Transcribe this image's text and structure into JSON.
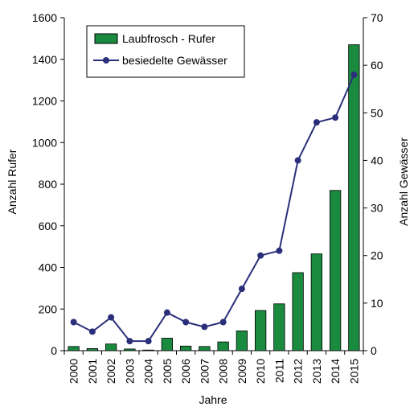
{
  "chart_data": {
    "type": "bar",
    "title": "",
    "xlabel": "Jahre",
    "ylabel": "Anzahl Rufer",
    "y2label": "Anzahl Gewässer",
    "categories": [
      "2000",
      "2001",
      "2002",
      "2003",
      "2004",
      "2005",
      "2006",
      "2007",
      "2008",
      "2009",
      "2010",
      "2011",
      "2012",
      "2013",
      "2014",
      "2015"
    ],
    "ylim": [
      0,
      1600
    ],
    "yticks": [
      0,
      200,
      400,
      600,
      800,
      1000,
      1200,
      1400,
      1600
    ],
    "y2lim": [
      0,
      70
    ],
    "y2ticks": [
      0,
      10,
      20,
      30,
      40,
      50,
      60,
      70
    ],
    "legend_position": "top-left",
    "grid": false,
    "series": [
      {
        "name": "Laubfrosch - Rufer",
        "type": "bar",
        "axis": "left",
        "color": "#1a8a3e",
        "values": [
          20,
          10,
          32,
          8,
          3,
          60,
          22,
          20,
          42,
          95,
          193,
          225,
          375,
          465,
          770,
          1470
        ]
      },
      {
        "name": "besiedelte Gewässer",
        "type": "line",
        "axis": "right",
        "color": "#2b2f7a",
        "values": [
          6,
          4,
          7,
          2,
          2,
          8,
          6,
          5,
          6,
          13,
          20,
          21,
          40,
          48,
          49,
          58
        ]
      }
    ]
  }
}
